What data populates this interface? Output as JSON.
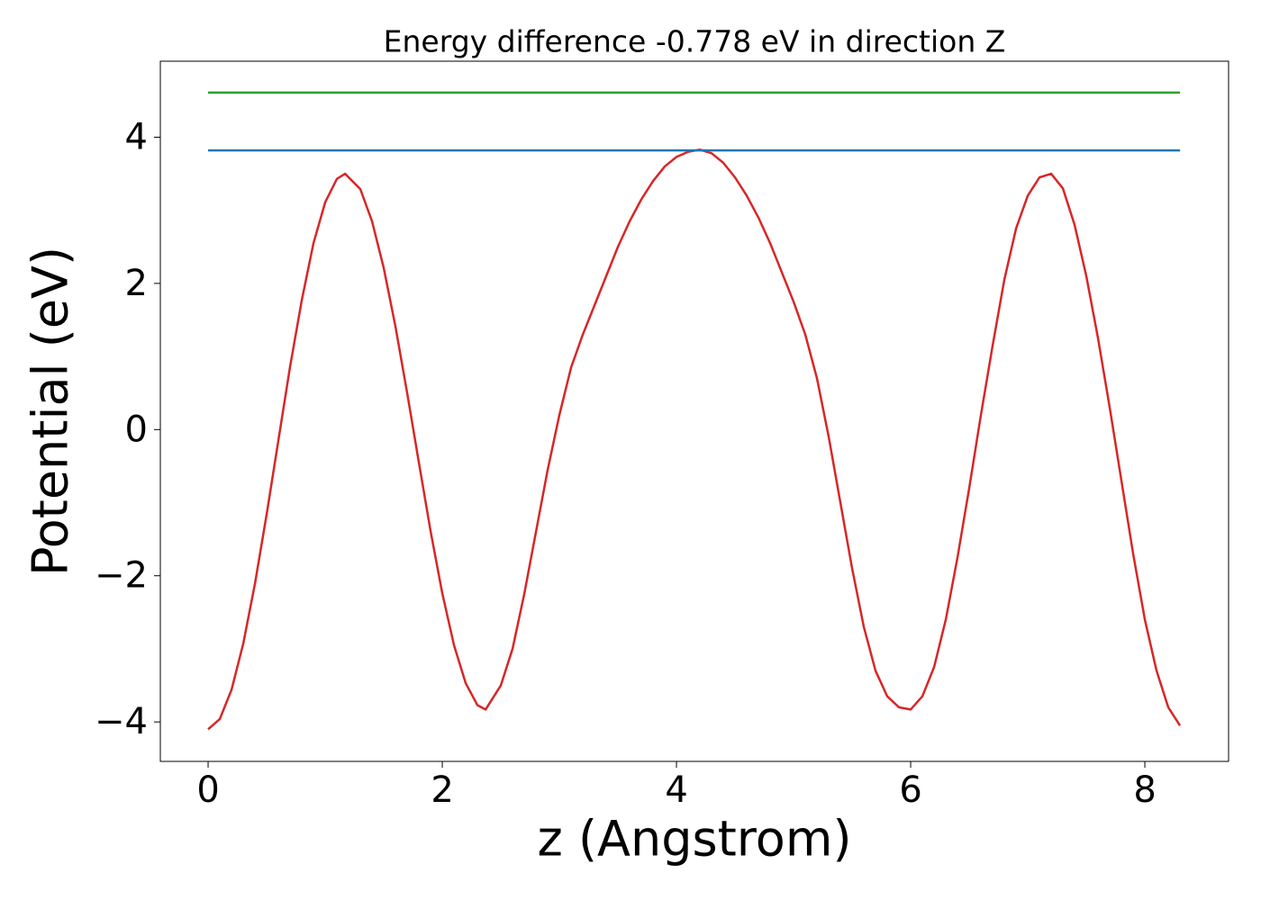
{
  "chart_data": {
    "type": "line",
    "title": "Energy difference -0.778 eV in direction Z",
    "xlabel": "z (Angstrom)",
    "ylabel": "Potential (eV)",
    "xlim": [
      -0.408,
      8.715
    ],
    "ylim": [
      -4.54,
      5.04
    ],
    "xticks": [
      0,
      2,
      4,
      6,
      8
    ],
    "yticks": [
      {
        "value": -4,
        "label": "−4"
      },
      {
        "value": -2,
        "label": "−2"
      },
      0,
      2,
      4
    ],
    "grid": false,
    "series": [
      {
        "color": "#d62728",
        "x": [
          0,
          0.1,
          0.2,
          0.3,
          0.4,
          0.5,
          0.6,
          0.7,
          0.8,
          0.9,
          1.0,
          1.1,
          1.17,
          1.3,
          1.4,
          1.5,
          1.6,
          1.7,
          1.8,
          1.9,
          2.0,
          2.1,
          2.2,
          2.3,
          2.37,
          2.5,
          2.6,
          2.7,
          2.8,
          2.9,
          3.0,
          3.1,
          3.2,
          3.3,
          3.4,
          3.5,
          3.6,
          3.7,
          3.8,
          3.9,
          4.0,
          4.1,
          4.2,
          4.3,
          4.4,
          4.5,
          4.6,
          4.7,
          4.8,
          4.9,
          5.0,
          5.1,
          5.2,
          5.3,
          5.4,
          5.5,
          5.6,
          5.7,
          5.8,
          5.9,
          6.0,
          6.1,
          6.2,
          6.3,
          6.4,
          6.5,
          6.6,
          6.7,
          6.8,
          6.9,
          7.0,
          7.1,
          7.2,
          7.3,
          7.4,
          7.5,
          7.6,
          7.7,
          7.8,
          7.9,
          8.0,
          8.1,
          8.2,
          8.3
        ],
        "values": [
          -4.1,
          -3.96,
          -3.56,
          -2.93,
          -2.11,
          -1.16,
          -0.15,
          0.86,
          1.77,
          2.55,
          3.11,
          3.43,
          3.5,
          3.29,
          2.85,
          2.21,
          1.41,
          0.5,
          -0.45,
          -1.39,
          -2.24,
          -2.95,
          -3.47,
          -3.77,
          -3.83,
          -3.5,
          -3.0,
          -2.25,
          -1.4,
          -0.55,
          0.2,
          0.85,
          1.3,
          1.7,
          2.1,
          2.5,
          2.85,
          3.15,
          3.4,
          3.6,
          3.73,
          3.8,
          3.83,
          3.78,
          3.65,
          3.45,
          3.2,
          2.9,
          2.55,
          2.15,
          1.75,
          1.3,
          0.7,
          -0.1,
          -1.0,
          -1.9,
          -2.7,
          -3.3,
          -3.65,
          -3.8,
          -3.83,
          -3.65,
          -3.25,
          -2.6,
          -1.75,
          -0.8,
          0.2,
          1.15,
          2.05,
          2.75,
          3.2,
          3.45,
          3.5,
          3.3,
          2.8,
          2.1,
          1.25,
          0.3,
          -0.7,
          -1.7,
          -2.6,
          -3.3,
          -3.8,
          -4.05
        ]
      },
      {
        "color": "#1f77b4",
        "x": [
          0,
          8.3
        ],
        "values": [
          3.82,
          3.82
        ]
      },
      {
        "color": "#2ca02c",
        "x": [
          0,
          8.3
        ],
        "values": [
          4.61,
          4.61
        ]
      }
    ]
  }
}
